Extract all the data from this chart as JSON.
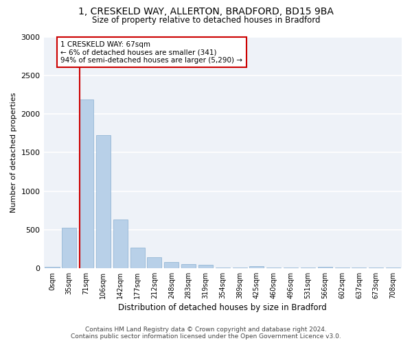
{
  "title_line1": "1, CRESKELD WAY, ALLERTON, BRADFORD, BD15 9BA",
  "title_line2": "Size of property relative to detached houses in Bradford",
  "xlabel": "Distribution of detached houses by size in Bradford",
  "ylabel": "Number of detached properties",
  "bar_color": "#b8d0e8",
  "bar_edge_color": "#88aed0",
  "background_color": "#eef2f8",
  "grid_color": "#ffffff",
  "categories": [
    "0sqm",
    "35sqm",
    "71sqm",
    "106sqm",
    "142sqm",
    "177sqm",
    "212sqm",
    "248sqm",
    "283sqm",
    "319sqm",
    "354sqm",
    "389sqm",
    "425sqm",
    "460sqm",
    "496sqm",
    "531sqm",
    "566sqm",
    "602sqm",
    "637sqm",
    "673sqm",
    "708sqm"
  ],
  "values": [
    20,
    520,
    2190,
    1730,
    630,
    270,
    140,
    80,
    50,
    40,
    10,
    5,
    25,
    5,
    5,
    5,
    20,
    5,
    5,
    5,
    5
  ],
  "ylim": [
    0,
    3000
  ],
  "yticks": [
    0,
    500,
    1000,
    1500,
    2000,
    2500,
    3000
  ],
  "marker_bar_idx": 2,
  "marker_label_line1": "1 CRESKELD WAY: 67sqm",
  "marker_label_line2": "← 6% of detached houses are smaller (341)",
  "marker_label_line3": "94% of semi-detached houses are larger (5,290) →",
  "footer_line1": "Contains HM Land Registry data © Crown copyright and database right 2024.",
  "footer_line2": "Contains public sector information licensed under the Open Government Licence v3.0.",
  "annotation_box_color": "#cc0000",
  "marker_line_color": "#cc0000",
  "title_fontsize": 10,
  "subtitle_fontsize": 9,
  "ylabel_text": "Number of detached properties"
}
